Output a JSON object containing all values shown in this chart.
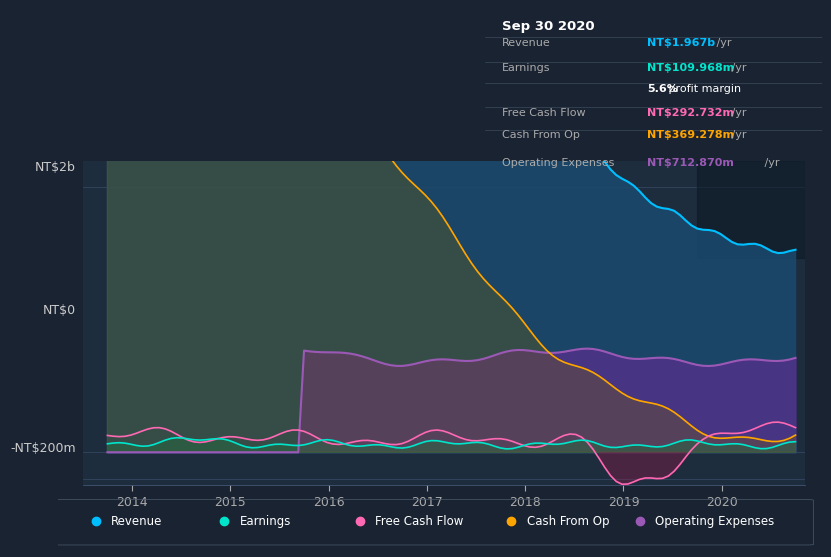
{
  "bg_color": "#1a2332",
  "plot_bg_color": "#1e2d3e",
  "title": "Sep 30 2020",
  "ylabel_top": "NT$2b",
  "ylabel_zero": "NT$0",
  "ylabel_neg": "-NT$200m",
  "ylim": [
    -250000000,
    2200000000
  ],
  "xlim_start": 2013.5,
  "xlim_end": 2020.85,
  "xtick_labels": [
    "2014",
    "2015",
    "2016",
    "2017",
    "2018",
    "2019",
    "2020"
  ],
  "xtick_positions": [
    2014,
    2015,
    2016,
    2017,
    2018,
    2019,
    2020
  ],
  "ytick_positions": [
    -200000000,
    0,
    2000000000
  ],
  "colors": {
    "revenue": "#00bfff",
    "earnings": "#00e5cc",
    "free_cash_flow": "#ff69b4",
    "cash_from_op": "#ffa500",
    "operating_expenses": "#9b59b6"
  },
  "fill_colors": {
    "revenue": "#1a4a6e",
    "operating_expenses": "#5b2d8e"
  },
  "legend_items": [
    "Revenue",
    "Earnings",
    "Free Cash Flow",
    "Cash From Op",
    "Operating Expenses"
  ],
  "info_box": {
    "date": "Sep 30 2020",
    "revenue_val": "NT$1.967b",
    "revenue_color": "#00bfff",
    "earnings_val": "NT$109.968m",
    "earnings_color": "#00e5cc",
    "profit_margin": "5.6%",
    "free_cash_flow_val": "NT$292.732m",
    "free_cash_flow_color": "#ff69b4",
    "cash_from_op_val": "NT$369.278m",
    "cash_from_op_color": "#ffa500",
    "operating_expenses_val": "NT$712.870m",
    "operating_expenses_color": "#9b59b6"
  }
}
